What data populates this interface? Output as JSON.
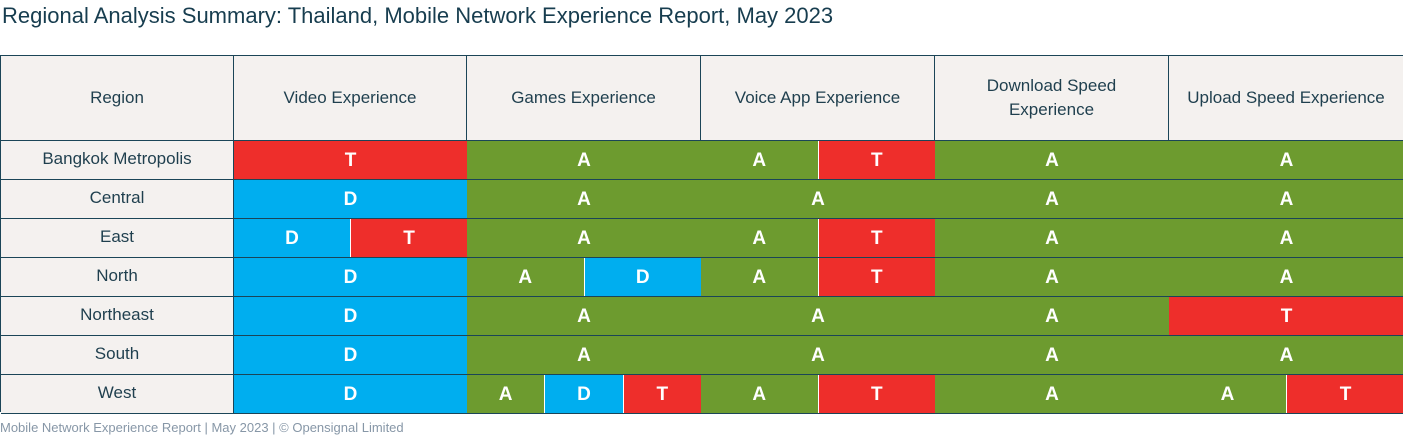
{
  "title": "Regional Analysis Summary: Thailand, Mobile Network Experience Report, May 2023",
  "columns": [
    "Region",
    "Video Experience",
    "Games Experience",
    "Voice App Experience",
    "Download Speed Experience",
    "Upload Speed Experience"
  ],
  "colors": {
    "A": "#6d9b2f",
    "D": "#00aeef",
    "T": "#ee2e2b"
  },
  "rows": [
    {
      "region": "Bangkok Metropolis",
      "cells": [
        [
          "T"
        ],
        [
          "A"
        ],
        [
          "A",
          "T"
        ],
        [
          "A"
        ],
        [
          "A"
        ]
      ]
    },
    {
      "region": "Central",
      "cells": [
        [
          "D"
        ],
        [
          "A"
        ],
        [
          "A"
        ],
        [
          "A"
        ],
        [
          "A"
        ]
      ]
    },
    {
      "region": "East",
      "cells": [
        [
          "D",
          "T"
        ],
        [
          "A"
        ],
        [
          "A",
          "T"
        ],
        [
          "A"
        ],
        [
          "A"
        ]
      ]
    },
    {
      "region": "North",
      "cells": [
        [
          "D"
        ],
        [
          "A",
          "D"
        ],
        [
          "A",
          "T"
        ],
        [
          "A"
        ],
        [
          "A"
        ]
      ]
    },
    {
      "region": "Northeast",
      "cells": [
        [
          "D"
        ],
        [
          "A"
        ],
        [
          "A"
        ],
        [
          "A"
        ],
        [
          "T"
        ]
      ]
    },
    {
      "region": "South",
      "cells": [
        [
          "D"
        ],
        [
          "A"
        ],
        [
          "A"
        ],
        [
          "A"
        ],
        [
          "A"
        ]
      ]
    },
    {
      "region": "West",
      "cells": [
        [
          "D"
        ],
        [
          "A",
          "D",
          "T"
        ],
        [
          "A",
          "T"
        ],
        [
          "A"
        ],
        [
          "A",
          "T"
        ]
      ]
    }
  ],
  "footer": "Mobile Network Experience Report | May 2023 | © Opensignal Limited"
}
